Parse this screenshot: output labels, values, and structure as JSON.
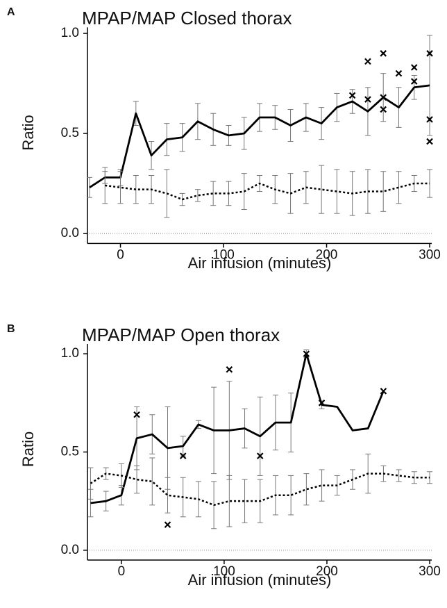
{
  "chart_data": [
    {
      "type": "line",
      "panel_label": "A",
      "title": "MPAP/MAP Closed thorax",
      "x_label": "Air infusion (minutes)",
      "y_label": "Ratio",
      "xlim": [
        -32,
        302
      ],
      "ylim": [
        -0.05,
        1.03
      ],
      "xticks": [
        0,
        100,
        200,
        300
      ],
      "yticks": [
        {
          "value": 0,
          "label": "0.0"
        },
        0.5,
        {
          "value": 1,
          "label": "1.0"
        }
      ],
      "zero_line": true,
      "x": [
        -30,
        -15,
        0,
        15,
        30,
        45,
        60,
        75,
        90,
        105,
        120,
        135,
        150,
        165,
        180,
        195,
        210,
        225,
        240,
        255,
        270,
        285,
        300
      ],
      "series": [
        {
          "style": "solid",
          "color": "#000000",
          "error_color": "#777777",
          "values": [
            0.23,
            0.28,
            0.28,
            0.6,
            0.39,
            0.47,
            0.48,
            0.56,
            0.52,
            0.49,
            0.5,
            0.58,
            0.58,
            0.54,
            0.58,
            0.55,
            0.63,
            0.66,
            0.61,
            0.68,
            0.63,
            0.73,
            0.74
          ],
          "errors": [
            0.05,
            0.03,
            0.04,
            0.06,
            0.07,
            0.08,
            0.07,
            0.09,
            0.08,
            0.05,
            0.08,
            0.07,
            0.06,
            0.08,
            0.07,
            0.08,
            0.07,
            0.06,
            0.12,
            0.12,
            0.1,
            0.06,
            0.25
          ]
        },
        {
          "style": "dotted",
          "color": "#000000",
          "error_color": "#777777",
          "values": [
            null,
            0.24,
            0.23,
            0.22,
            0.22,
            0.2,
            0.17,
            0.19,
            0.2,
            0.2,
            0.21,
            0.25,
            0.22,
            0.2,
            0.23,
            0.22,
            0.21,
            0.2,
            0.21,
            0.21,
            0.23,
            0.25,
            0.25
          ],
          "errors": [
            null,
            0.09,
            0.08,
            0.07,
            0.07,
            0.12,
            0.03,
            0.03,
            0.06,
            0.06,
            0.09,
            0.04,
            0.07,
            0.1,
            0.08,
            0.12,
            0.11,
            0.11,
            0.11,
            0.1,
            0.08,
            0.04,
            0.07
          ]
        },
        {
          "type": "scatter",
          "marker": "x",
          "color": "#000000",
          "x": [
            225,
            240,
            240,
            255,
            255,
            255,
            270,
            285,
            285,
            300,
            300,
            300
          ],
          "values": [
            0.69,
            0.86,
            0.67,
            0.9,
            0.68,
            0.62,
            0.8,
            0.83,
            0.76,
            0.9,
            0.57,
            0.46
          ]
        }
      ]
    },
    {
      "type": "line",
      "panel_label": "B",
      "title": "MPAP/MAP Open thorax",
      "x_label": "Air infusion (minutes)",
      "y_label": "Ratio",
      "xlim": [
        -33,
        302
      ],
      "ylim": [
        -0.05,
        1.05
      ],
      "xticks": [
        0,
        100,
        200,
        300
      ],
      "yticks": [
        {
          "value": 0,
          "label": "0.0"
        },
        0.5,
        {
          "value": 1,
          "label": "1.0"
        }
      ],
      "zero_line": true,
      "x": [
        -30,
        -15,
        0,
        15,
        30,
        45,
        60,
        75,
        90,
        105,
        120,
        135,
        150,
        165,
        180,
        195,
        210,
        225,
        240,
        255,
        270,
        285,
        300
      ],
      "series": [
        {
          "style": "solid",
          "color": "#000000",
          "error_color": "#777777",
          "values": [
            0.24,
            0.25,
            0.28,
            0.57,
            0.59,
            0.52,
            0.53,
            0.64,
            0.61,
            0.61,
            0.62,
            0.58,
            0.65,
            0.65,
            1.0,
            0.74,
            0.73,
            0.61,
            0.62,
            0.81,
            null,
            null,
            null
          ],
          "errors": [
            0.07,
            0.05,
            0.05,
            0.16,
            0.1,
            0.21,
            0.05,
            0.02,
            0.22,
            0.25,
            0.1,
            0.2,
            0.14,
            0.15,
            0.02,
            0.02,
            null,
            null,
            null,
            null,
            null,
            null,
            null
          ]
        },
        {
          "style": "dotted",
          "color": "#000000",
          "error_color": "#777777",
          "values": [
            0.34,
            0.39,
            0.38,
            0.36,
            0.35,
            0.28,
            0.27,
            0.26,
            0.23,
            0.25,
            0.25,
            0.25,
            0.28,
            0.28,
            0.31,
            0.33,
            0.33,
            0.36,
            0.39,
            0.39,
            0.38,
            0.37,
            0.37
          ],
          "errors": [
            0.08,
            0.03,
            0.06,
            0.07,
            0.12,
            0.09,
            0.1,
            0.09,
            0.12,
            0.13,
            0.11,
            0.11,
            0.1,
            0.1,
            0.08,
            0.08,
            0.05,
            0.05,
            0.1,
            0.04,
            0.03,
            0.03,
            0.03
          ]
        },
        {
          "type": "scatter",
          "marker": "x",
          "color": "#000000",
          "x": [
            15,
            45,
            60,
            105,
            135,
            180,
            195,
            255
          ],
          "values": [
            0.69,
            0.13,
            0.48,
            0.92,
            0.48,
            1.0,
            0.75,
            0.81
          ]
        }
      ]
    }
  ]
}
